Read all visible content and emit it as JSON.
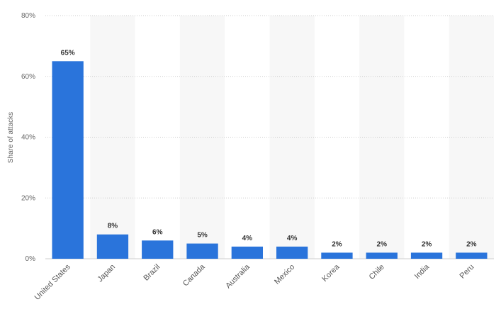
{
  "chart_data": {
    "type": "bar",
    "categories": [
      "United States",
      "Japan",
      "Brazil",
      "Canada",
      "Australia",
      "Mexico",
      "Korea",
      "Chile",
      "India",
      "Peru"
    ],
    "values": [
      65,
      8,
      6,
      5,
      4,
      4,
      2,
      2,
      2,
      2
    ],
    "data_labels": [
      "65%",
      "8%",
      "6%",
      "5%",
      "4%",
      "4%",
      "2%",
      "2%",
      "2%",
      "2%"
    ],
    "ylabel": "Share of attacks",
    "ylim": [
      0,
      80
    ],
    "yticks": [
      0,
      20,
      40,
      60,
      80
    ],
    "ytick_labels": [
      "0%",
      "20%",
      "40%",
      "60%",
      "80%"
    ],
    "grid": true,
    "alternating_column_shading": true,
    "colors": {
      "bar": "#2a74db",
      "band": "#f7f7f7",
      "grid": "#cccccc"
    }
  }
}
